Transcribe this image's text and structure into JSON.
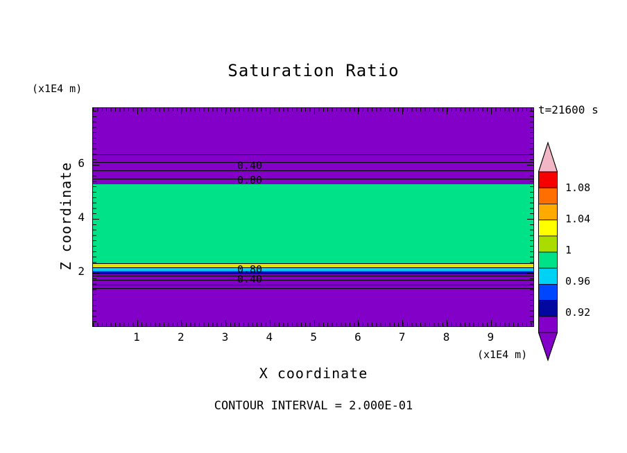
{
  "title": "Saturation Ratio",
  "annotations": {
    "time": "t=21600 s",
    "contour_note": "CONTOUR INTERVAL = 2.000E-01"
  },
  "axes": {
    "x_label": "X coordinate",
    "y_label": "Z coordinate",
    "x_unit": "(x1E4 m)",
    "y_unit": "(x1E4 m)",
    "x_ticks": [
      "1",
      "2",
      "3",
      "4",
      "5",
      "6",
      "7",
      "8",
      "9"
    ],
    "y_ticks": [
      "6",
      "4",
      "2"
    ]
  },
  "contour_labels": [
    "0.40",
    "0.80",
    "0.80",
    "0.40"
  ],
  "colorbar": {
    "tick_labels": [
      "1.08",
      "1.04",
      "1",
      "0.96",
      "0.92"
    ],
    "over_color": "#F2B6C6",
    "under_color": "#8300C8",
    "segments": [
      {
        "color": "#F60000"
      },
      {
        "color": "#FF6E00"
      },
      {
        "color": "#FFAA00"
      },
      {
        "color": "#FFFF00"
      },
      {
        "color": "#AADC00"
      },
      {
        "color": "#00E287"
      },
      {
        "color": "#00D2F5"
      },
      {
        "color": "#0046FF"
      },
      {
        "color": "#0008A0"
      },
      {
        "color": "#8300C8"
      }
    ]
  },
  "colors": {
    "background": "#FFFFFF",
    "purple_field": "#8300C8",
    "green_band": "#00E287",
    "yellow_stripe": "#E0E600",
    "cyan_stripe": "#00D2F5",
    "blue_stripe": "#0046FF",
    "navy_stripe": "#0008A0",
    "line": "#000000"
  },
  "chart_data": {
    "type": "heatmap",
    "title": "Saturation Ratio",
    "xlabel": "X coordinate (x1E4 m)",
    "ylabel": "Z coordinate (x1E4 m)",
    "x_range": [
      0,
      9.95
    ],
    "z_range": [
      0,
      8.1
    ],
    "x_ticks": [
      1,
      2,
      3,
      4,
      5,
      6,
      7,
      8,
      9
    ],
    "z_ticks": [
      2,
      4,
      6
    ],
    "time_seconds": 21600,
    "contour_interval": 0.2,
    "uniform_in_x": true,
    "colorbar": {
      "orientation": "vertical",
      "position": "right",
      "ticks": [
        1.08,
        1.04,
        1.0,
        0.96,
        0.92
      ],
      "tick_step": 0.04
    },
    "field_bands": [
      {
        "z_from": 5.3,
        "z_to": 8.1,
        "saturation_ratio": "<0.2",
        "color": "#8300C8"
      },
      {
        "z_from": 2.35,
        "z_to": 5.3,
        "saturation_ratio": "~1.0",
        "color": "#00E287"
      },
      {
        "z_from": 2.18,
        "z_to": 2.35,
        "saturation_ratio": "~1.02-1.06",
        "color": "#E0E600"
      },
      {
        "z_from": 2.05,
        "z_to": 2.18,
        "saturation_ratio": "~0.94-0.98",
        "color": "#00D2F5"
      },
      {
        "z_from": 1.97,
        "z_to": 2.05,
        "saturation_ratio": "~0.90-0.94",
        "color": "#0046FF"
      },
      {
        "z_from": 0.0,
        "z_to": 1.97,
        "saturation_ratio": "<0.2",
        "color": "#8300C8"
      }
    ],
    "contours": [
      {
        "value": 0.2,
        "z_top": 6.35,
        "z_bottom": 1.55,
        "labeled": false
      },
      {
        "value": 0.4,
        "z_top": 6.08,
        "z_bottom": 1.72,
        "labeled": true
      },
      {
        "value": 0.6,
        "z_top": 5.77,
        "z_bottom": 1.87,
        "labeled": false
      },
      {
        "value": 0.8,
        "z_top": 5.45,
        "z_bottom": 2.03,
        "labeled": true
      }
    ]
  }
}
